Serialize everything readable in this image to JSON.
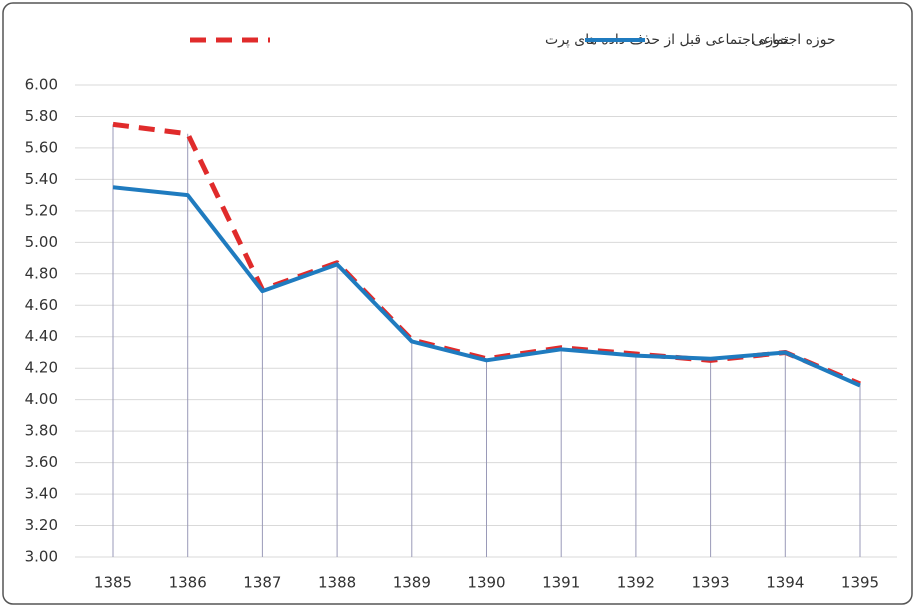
{
  "chart_data": {
    "type": "line",
    "categories": [
      "1385",
      "1386",
      "1387",
      "1388",
      "1389",
      "1390",
      "1391",
      "1392",
      "1393",
      "1394",
      "1395"
    ],
    "series": [
      {
        "name": "حوزه اجتماعی قبل از حذف داده  های پرت",
        "color": "#e02b2b",
        "dash": true,
        "values": [
          5.75,
          5.69,
          4.7,
          4.87,
          4.38,
          4.26,
          4.33,
          4.29,
          4.25,
          4.3,
          4.1
        ]
      },
      {
        "name": "حوزه اجتماعی",
        "color": "#1f7bbf",
        "dash": false,
        "values": [
          5.35,
          5.3,
          4.69,
          4.86,
          4.37,
          4.25,
          4.32,
          4.28,
          4.26,
          4.3,
          4.09
        ]
      }
    ],
    "ylim": [
      3.0,
      6.0
    ],
    "yticks": [
      {
        "value": 3.0,
        "label": "3.00"
      },
      {
        "value": 3.2,
        "label": "3.20"
      },
      {
        "value": 3.4,
        "label": "3.40"
      },
      {
        "value": 3.6,
        "label": "3.60"
      },
      {
        "value": 3.8,
        "label": "3.80"
      },
      {
        "value": 4.0,
        "label": "4.00"
      },
      {
        "value": 4.2,
        "label": "4.20"
      },
      {
        "value": 4.4,
        "label": "4.40"
      },
      {
        "value": 4.6,
        "label": "4.60"
      },
      {
        "value": 4.8,
        "label": "4.80"
      },
      {
        "value": 5.0,
        "label": "5.00"
      },
      {
        "value": 5.2,
        "label": "5.20"
      },
      {
        "value": 5.4,
        "label": "5.40"
      },
      {
        "value": 5.6,
        "label": "5.60"
      },
      {
        "value": 5.8,
        "label": "5.80"
      },
      {
        "value": 6.0,
        "label": "6.00"
      }
    ],
    "grid": true,
    "drop_lines": true,
    "legend": "top"
  }
}
